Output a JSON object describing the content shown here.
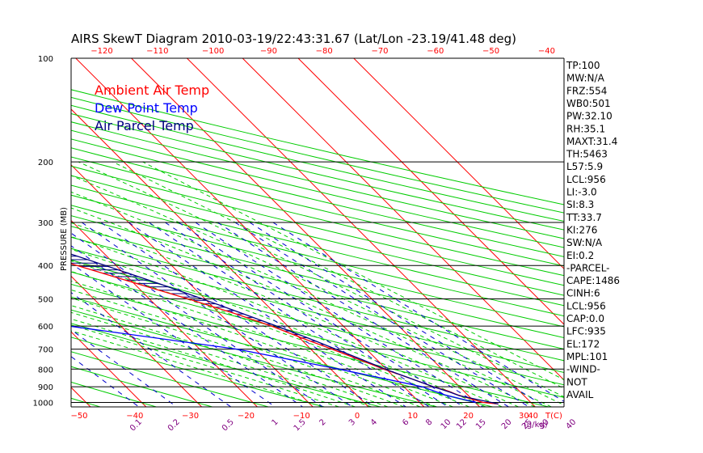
{
  "chart_data": {
    "type": "line",
    "title": "AIRS SkewT Diagram 2010-03-19/22:43:31.67 (Lat/Lon -23.19/41.48 deg)",
    "ylabel": "PRESSURE (MB)",
    "xlabel": "T(C)",
    "mixing_ratio_label": "(g/kg)",
    "plim": [
      100,
      1030
    ],
    "pressure_ticks": [
      100,
      200,
      300,
      400,
      500,
      600,
      700,
      800,
      900,
      1000
    ],
    "top_temp_ticks": [
      -120,
      -110,
      -100,
      -90,
      -80,
      -70,
      -60,
      -50,
      -40
    ],
    "bottom_temp_ticks": [
      -50,
      -40,
      -30,
      -20,
      -10,
      0,
      10,
      20,
      30,
      40
    ],
    "mixing_ratio_ticks": [
      "0.1",
      "0.2",
      "0.5",
      "1",
      "1.5",
      "2",
      "3",
      "4",
      "6",
      "8",
      "10",
      "12",
      "15",
      "20",
      "25",
      "30",
      "40"
    ],
    "legend": [
      "Ambient Air Temp",
      "Dew Point Temp",
      "Air Parcel Temp"
    ],
    "colors": {
      "ambient": "#ff0000",
      "dewpoint": "#0000ff",
      "parcel": "#000080",
      "isotherm": "#ff0000",
      "dry_adiabat": "#00cc00",
      "moist_adiabat": "#00cc00",
      "mixing_ratio": "#0000cc",
      "pressure_line": "#000000",
      "cape_hatch": "#000080",
      "text": "#000000",
      "tick_labels": "#ff0000",
      "mixing_labels": "#800080"
    },
    "series": [
      {
        "name": "Ambient Air Temp",
        "points": [
          [
            100,
            -75.6
          ],
          [
            115,
            -78.4
          ],
          [
            125,
            -81.7
          ],
          [
            150,
            -81.4
          ],
          [
            175,
            -75.7
          ],
          [
            200,
            -67.7
          ],
          [
            225,
            -61.7
          ],
          [
            250,
            -55.5
          ],
          [
            300,
            -44.6
          ],
          [
            350,
            -35.4
          ],
          [
            400,
            -27.0
          ],
          [
            450,
            -19.7
          ],
          [
            500,
            -13.1
          ],
          [
            550,
            -7.4
          ],
          [
            600,
            -2.9
          ],
          [
            650,
            0.4
          ],
          [
            700,
            3.8
          ],
          [
            750,
            6.8
          ],
          [
            800,
            9.5
          ],
          [
            850,
            12.6
          ],
          [
            900,
            15.3
          ],
          [
            925,
            17.1
          ],
          [
            950,
            18.2
          ],
          [
            1000,
            21.4
          ],
          [
            1010,
            23.9
          ]
        ]
      },
      {
        "name": "Dew Point Temp",
        "points": [
          [
            100,
            -98.9
          ],
          [
            150,
            -100.7
          ],
          [
            200,
            -87.6
          ],
          [
            250,
            -79.0
          ],
          [
            300,
            -74.0
          ],
          [
            400,
            -66.9
          ],
          [
            500,
            -59.7
          ],
          [
            600,
            -39.3
          ],
          [
            700,
            -13.3
          ],
          [
            800,
            1.5
          ],
          [
            900,
            13.3
          ],
          [
            950,
            15.9
          ],
          [
            1000,
            20.1
          ]
        ]
      },
      {
        "name": "Air Parcel Temp",
        "points": [
          [
            100,
            -118.5
          ],
          [
            150,
            -86.6
          ],
          [
            175,
            -74.0
          ],
          [
            200,
            -63.2
          ],
          [
            225,
            -55.6
          ],
          [
            250,
            -48.8
          ],
          [
            300,
            -38.0
          ],
          [
            350,
            -29.2
          ],
          [
            400,
            -21.9
          ],
          [
            450,
            -15.7
          ],
          [
            500,
            -10.5
          ],
          [
            550,
            -6.0
          ],
          [
            600,
            -2.0
          ],
          [
            650,
            1.5
          ],
          [
            700,
            4.5
          ],
          [
            750,
            7.3
          ],
          [
            800,
            9.8
          ],
          [
            850,
            12.6
          ],
          [
            900,
            15.3
          ],
          [
            935,
            17.4
          ],
          [
            956,
            18.4
          ],
          [
            1010,
            23.9
          ]
        ]
      }
    ],
    "indices": [
      "TP:100",
      "MW:N/A",
      "FRZ:554",
      "WB0:501",
      "PW:32.10",
      "RH:35.1",
      "MAXT:31.4",
      "TH:5463",
      "L57:5.9",
      "LCL:956",
      "LI:-3.0",
      "SI:8.3",
      "TT:33.7",
      "KI:276",
      "SW:N/A",
      "EI:0.2",
      "-PARCEL-",
      "CAPE:1486",
      "CINH:6",
      "LCL:956",
      "CAP:0.0",
      "LFC:935",
      "EL:172",
      "MPL:101",
      "-WIND-",
      "NOT",
      "AVAIL"
    ]
  }
}
